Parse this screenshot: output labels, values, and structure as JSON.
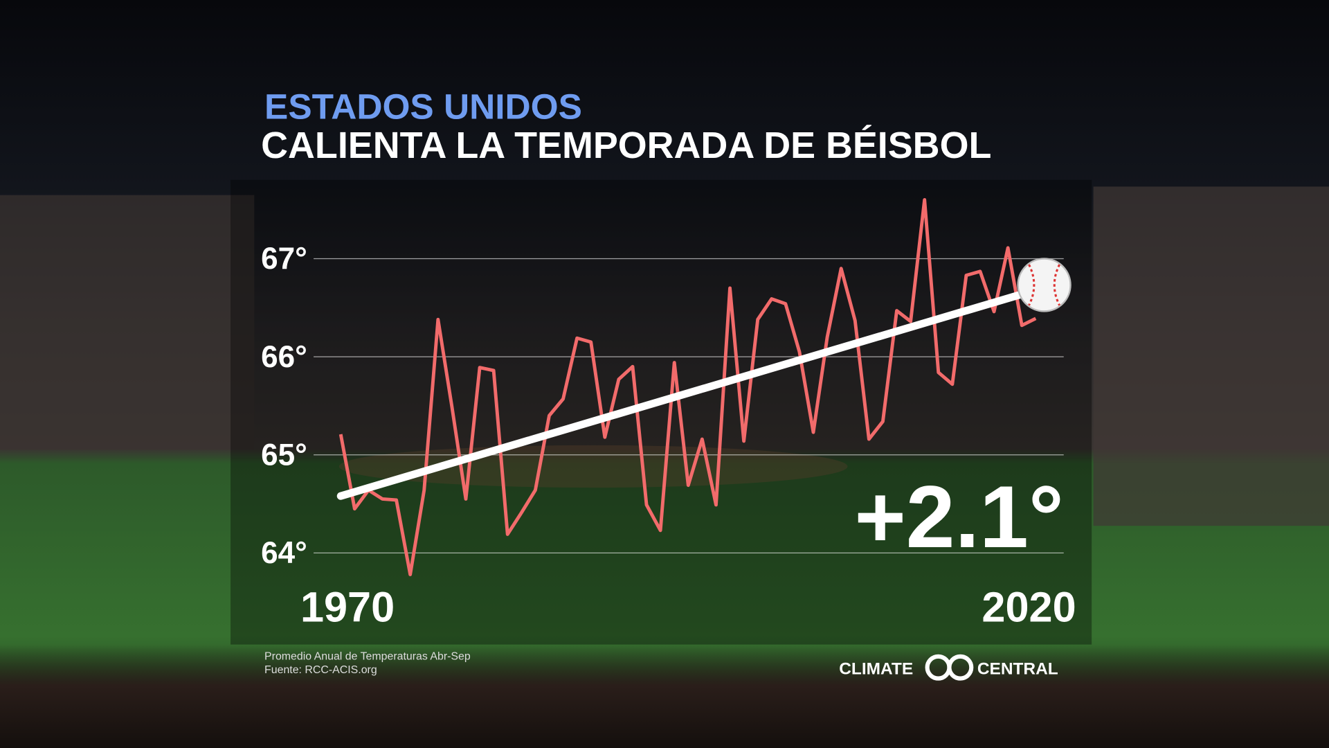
{
  "chart_data": {
    "type": "line",
    "title": "ESTADOS UNIDOS",
    "subtitle": "CALIENTA LA TEMPORADA DE BÉISBOL",
    "x": [
      1970,
      1971,
      1972,
      1973,
      1974,
      1975,
      1976,
      1977,
      1978,
      1979,
      1980,
      1981,
      1982,
      1983,
      1984,
      1985,
      1986,
      1987,
      1988,
      1989,
      1990,
      1991,
      1992,
      1993,
      1994,
      1995,
      1996,
      1997,
      1998,
      1999,
      2000,
      2001,
      2002,
      2003,
      2004,
      2005,
      2006,
      2007,
      2008,
      2009,
      2010,
      2011,
      2012,
      2013,
      2014,
      2015,
      2016,
      2017,
      2018,
      2019,
      2020
    ],
    "series": [
      {
        "color": "#f26b6b",
        "values": [
          65.21,
          64.45,
          64.64,
          64.55,
          64.54,
          63.78,
          64.64,
          66.38,
          65.49,
          64.55,
          65.89,
          65.86,
          64.19,
          64.41,
          64.64,
          65.4,
          65.57,
          66.19,
          66.15,
          65.18,
          65.77,
          65.9,
          64.49,
          64.23,
          65.94,
          64.69,
          65.16,
          64.49,
          66.7,
          65.14,
          66.38,
          66.59,
          66.54,
          66.05,
          65.23,
          66.2,
          66.9,
          66.37,
          65.16,
          65.34,
          66.47,
          66.36,
          67.6,
          65.84,
          65.72,
          66.83,
          66.87,
          66.46,
          67.11,
          66.32,
          66.39
        ]
      }
    ],
    "trend": {
      "color": "#ffffff",
      "x": [
        1970,
        2020
      ],
      "values": [
        64.58,
        66.68
      ]
    },
    "xlim": [
      1970,
      2020
    ],
    "xticks": [
      1970,
      2020
    ],
    "ylim": [
      64,
      67
    ],
    "yticks": [
      {
        "value": 64,
        "label": "64°"
      },
      {
        "value": 65,
        "label": "65°"
      },
      {
        "value": 66,
        "label": "66°"
      },
      {
        "value": 67,
        "label": "67°"
      }
    ],
    "grid": true,
    "annotation": "+2.1°",
    "notes": [
      "Promedio Anual de Temperaturas Abr-Sep",
      "Fuente: RCC-ACIS.org"
    ],
    "logo": [
      "CLIMATE",
      "CENTRAL"
    ]
  }
}
